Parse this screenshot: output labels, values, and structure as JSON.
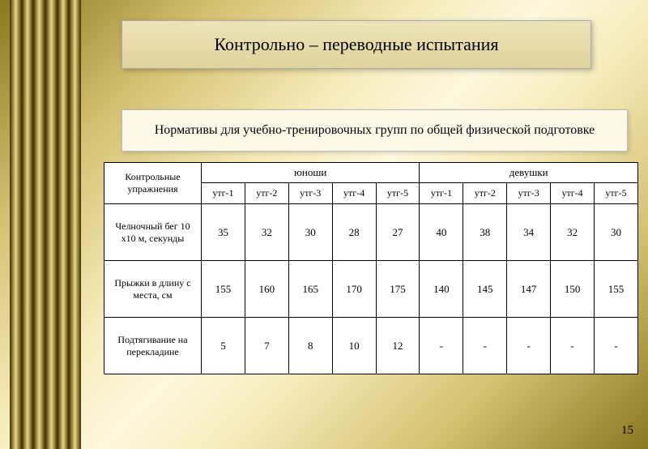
{
  "slide": {
    "title": "Контрольно – переводные испытания",
    "subtitle": "Нормативы для учебно-тренировочных групп  по общей физической подготовке",
    "number": "15"
  },
  "table": {
    "exercise_header": "Контрольные упражнения",
    "group_boys": "юноши",
    "group_girls": "девушки",
    "subheaders": [
      "утг-1",
      "утг-2",
      "утг-3",
      "утг-4",
      "утг-5",
      "утг-1",
      "утг-2",
      "утг-3",
      "утг-4",
      "утг-5"
    ],
    "rows": [
      {
        "label": "Челночный бег 10 х10 м, секунды",
        "vals": [
          "35",
          "32",
          "30",
          "28",
          "27",
          "40",
          "38",
          "34",
          "32",
          "30"
        ]
      },
      {
        "label": "Прыжки в длину с места,  см",
        "vals": [
          "155",
          "160",
          "165",
          "170",
          "175",
          "140",
          "145",
          "147",
          "150",
          "155"
        ]
      },
      {
        "label": "Подтягивание на перекладине",
        "vals": [
          "5",
          "7",
          "8",
          "10",
          "12",
          "-",
          "-",
          "-",
          "-",
          "-"
        ]
      }
    ]
  },
  "style": {
    "background_gradient": [
      "#8a7820",
      "#d4c070",
      "#f5eab8",
      "#fdf8dd"
    ],
    "title_bg": [
      "#ece3b8",
      "#e0d49c"
    ],
    "subtitle_bg": "#fdf9e8",
    "table_bg": "#ffffff",
    "border_color": "#000000",
    "title_fontsize": 22,
    "subtitle_fontsize": 16,
    "cell_fontsize": 12
  }
}
